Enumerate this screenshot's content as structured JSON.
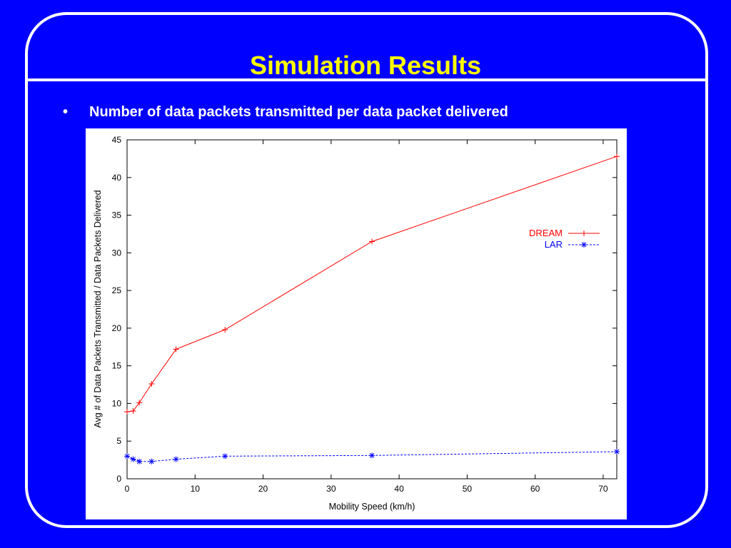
{
  "slide": {
    "title": "Simulation Results",
    "bullet_symbol": "•",
    "bullet_text": "Number of data packets transmitted per data packet delivered",
    "colors": {
      "background": "#0000ff",
      "title": "#ffff00",
      "text": "#ffffff",
      "frame": "#ffffff"
    }
  },
  "chart_data": {
    "type": "line",
    "title": "",
    "xlabel": "Mobility Speed (km/h)",
    "ylabel": "Avg # of Data Packets Transmitted / Data Packets Delivered",
    "xlim": [
      0,
      72
    ],
    "ylim": [
      0,
      45
    ],
    "xticks": [
      0,
      10,
      20,
      30,
      40,
      50,
      60,
      70
    ],
    "yticks": [
      0,
      5,
      10,
      15,
      20,
      25,
      30,
      35,
      40,
      45
    ],
    "grid": false,
    "legend_position": "upper-right",
    "series": [
      {
        "name": "DREAM",
        "color": "#ff0000",
        "marker": "plus",
        "line": "solid",
        "x": [
          0,
          0.9,
          1.8,
          3.6,
          7.2,
          14.4,
          36,
          72
        ],
        "y": [
          8.9,
          9.0,
          10.1,
          12.6,
          17.2,
          19.8,
          31.5,
          42.8
        ]
      },
      {
        "name": "LAR",
        "color": "#0000ff",
        "marker": "star",
        "line": "dashed",
        "x": [
          0,
          0.9,
          1.8,
          3.6,
          7.2,
          14.4,
          36,
          72
        ],
        "y": [
          3.0,
          2.6,
          2.3,
          2.3,
          2.6,
          3.0,
          3.1,
          3.6
        ]
      }
    ]
  }
}
